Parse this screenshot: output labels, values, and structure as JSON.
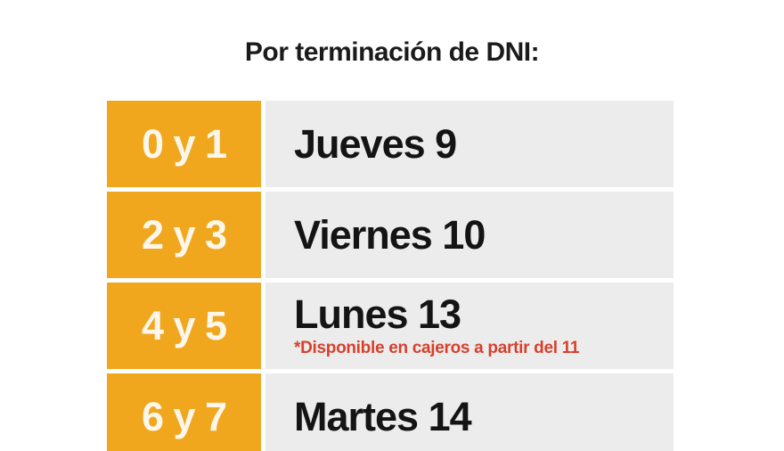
{
  "title": "Por terminación de DNI:",
  "colors": {
    "accent_orange": "#F0A71E",
    "cell_gray": "#ECECEC",
    "note_red": "#D8402C",
    "title_black": "#1B1B1B",
    "dni_text_cream": "#FCF7EA"
  },
  "schedule": {
    "rows": [
      {
        "dni": "0 y 1",
        "day": "Jueves 9",
        "note": ""
      },
      {
        "dni": "2 y 3",
        "day": "Viernes 10",
        "note": ""
      },
      {
        "dni": "4 y 5",
        "day": "Lunes 13",
        "note": "*Disponible en cajeros a partir del 11"
      },
      {
        "dni": "6 y 7",
        "day": "Martes 14",
        "note": ""
      }
    ]
  },
  "chart_data": {
    "type": "table",
    "title": "Por terminación de DNI:",
    "rows": [
      [
        "0 y 1",
        "Jueves 9"
      ],
      [
        "2 y 3",
        "Viernes 10"
      ],
      [
        "4 y 5",
        "Lunes 13"
      ],
      [
        "6 y 7",
        "Martes 14"
      ]
    ],
    "annotations": [
      "*Disponible en cajeros a partir del 11"
    ]
  }
}
